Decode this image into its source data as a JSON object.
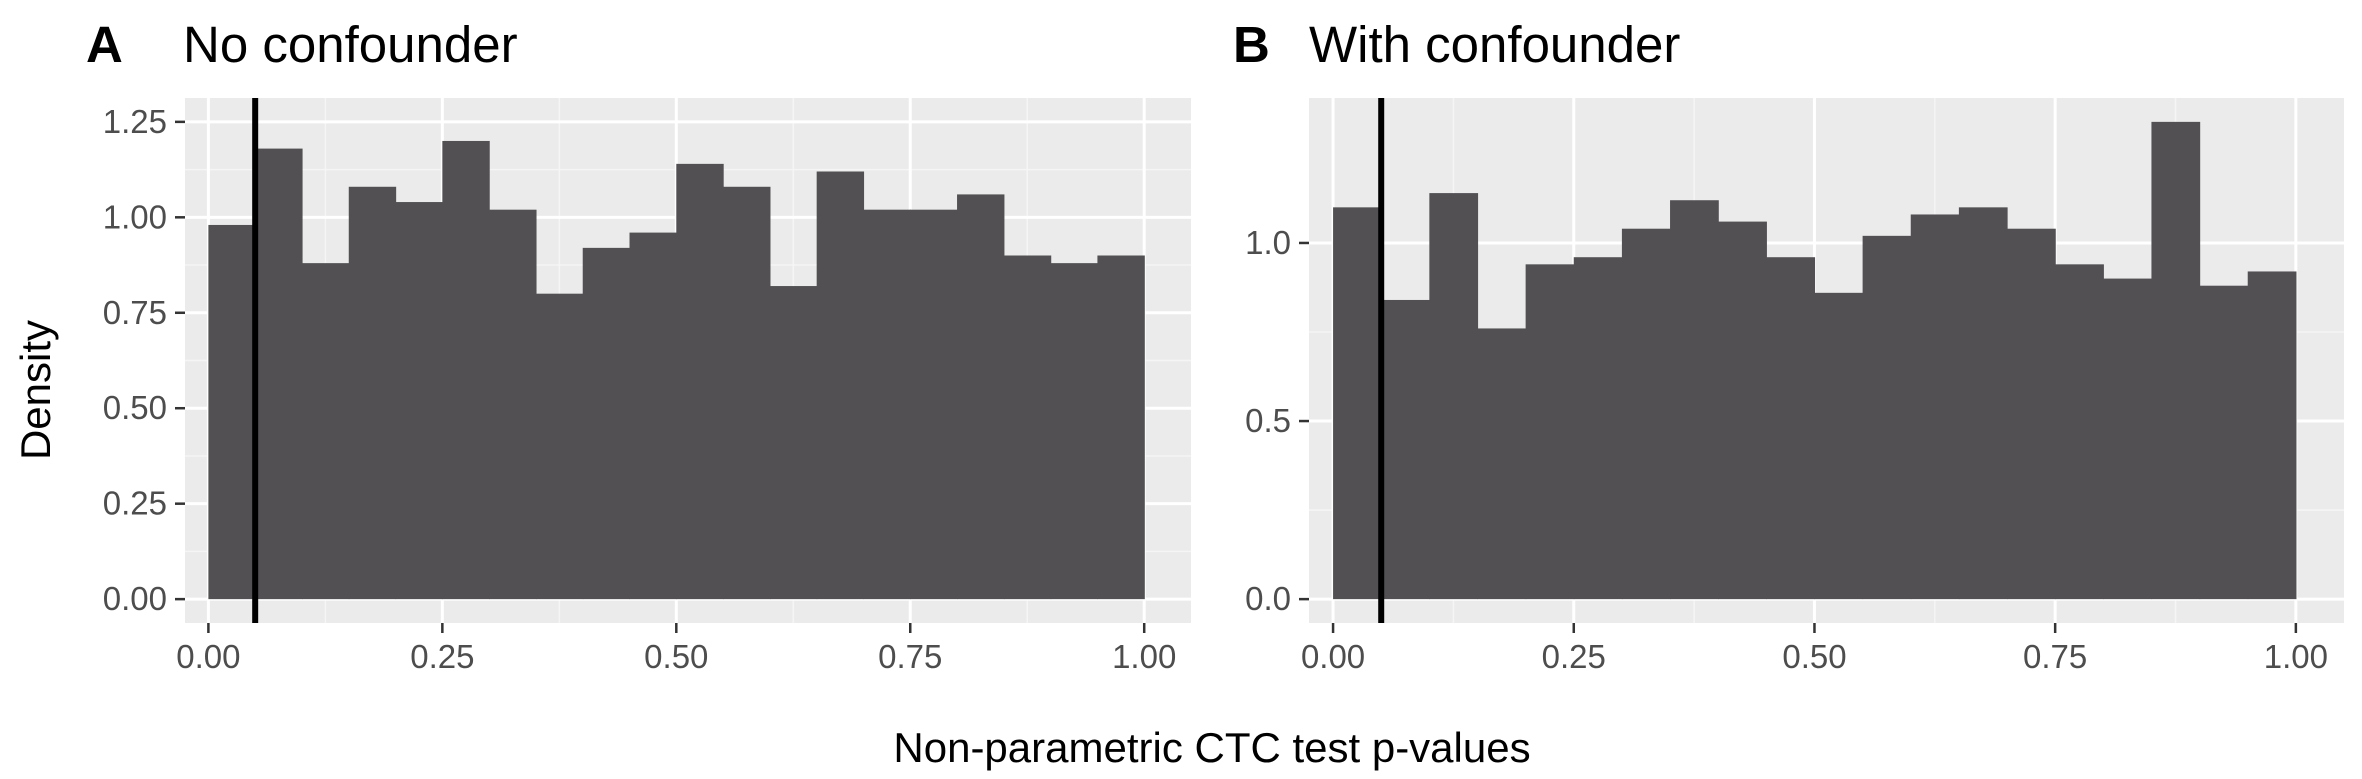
{
  "figure": {
    "shared_xlabel": "Non-parametric CTC test p-values",
    "shared_ylabel": "Density"
  },
  "colors": {
    "panel_background": "#ebebeb",
    "grid_major": "#ffffff",
    "grid_minor": "#f5f5f5",
    "bar_fill": "#525053",
    "reference_line": "#000000",
    "tick_text": "#4d4d4d",
    "tick_mark": "#333333"
  },
  "chart_data": [
    {
      "type": "bar",
      "panel": "A",
      "title": "No confounder",
      "xlabel": "Non-parametric CTC test p-values",
      "ylabel": "Density",
      "xlim": [
        -0.025,
        1.05
      ],
      "ylim": [
        -0.0625,
        1.3125
      ],
      "x_ticks": [
        0,
        0.25,
        0.5,
        0.75,
        1
      ],
      "x_tick_labels": [
        "0.00",
        "0.25",
        "0.50",
        "0.75",
        "1.00"
      ],
      "y_ticks": [
        0,
        0.25,
        0.5,
        0.75,
        1,
        1.25
      ],
      "y_tick_labels": [
        "0.00",
        "0.25",
        "0.50",
        "0.75",
        "1.00",
        "1.25"
      ],
      "bin_width": 0.05,
      "bin_starts": [
        0,
        0.05,
        0.1,
        0.15,
        0.2,
        0.25,
        0.3,
        0.35,
        0.4,
        0.45,
        0.5,
        0.55,
        0.6,
        0.65,
        0.7,
        0.75,
        0.8,
        0.85,
        0.9,
        0.95
      ],
      "values": [
        0.98,
        1.18,
        0.88,
        1.08,
        1.04,
        1.2,
        1.02,
        0.8,
        0.92,
        0.96,
        1.14,
        1.08,
        0.82,
        1.12,
        1.02,
        1.02,
        1.06,
        0.9,
        0.88,
        0.9
      ],
      "reference_line_x": 0.05,
      "grid": true
    },
    {
      "type": "bar",
      "panel": "B",
      "title": "With confounder",
      "xlabel": "Non-parametric CTC test p-values",
      "ylabel": "Density",
      "xlim": [
        -0.025,
        1.05
      ],
      "ylim": [
        -0.067,
        1.407
      ],
      "x_ticks": [
        0,
        0.25,
        0.5,
        0.75,
        1
      ],
      "x_tick_labels": [
        "0.00",
        "0.25",
        "0.50",
        "0.75",
        "1.00"
      ],
      "y_ticks": [
        0,
        0.5,
        1
      ],
      "y_tick_labels": [
        "0.0",
        "0.5",
        "1.0"
      ],
      "bin_width": 0.05,
      "bin_starts": [
        0,
        0.05,
        0.1,
        0.15,
        0.2,
        0.25,
        0.3,
        0.35,
        0.4,
        0.45,
        0.5,
        0.55,
        0.6,
        0.65,
        0.7,
        0.75,
        0.8,
        0.85,
        0.9,
        0.95
      ],
      "values": [
        1.1,
        0.84,
        1.14,
        0.76,
        0.94,
        0.96,
        1.04,
        1.12,
        1.06,
        0.96,
        0.86,
        1.02,
        1.08,
        1.1,
        1.04,
        0.94,
        0.9,
        1.34,
        0.88,
        0.92
      ],
      "reference_line_x": 0.05,
      "grid": true
    }
  ]
}
